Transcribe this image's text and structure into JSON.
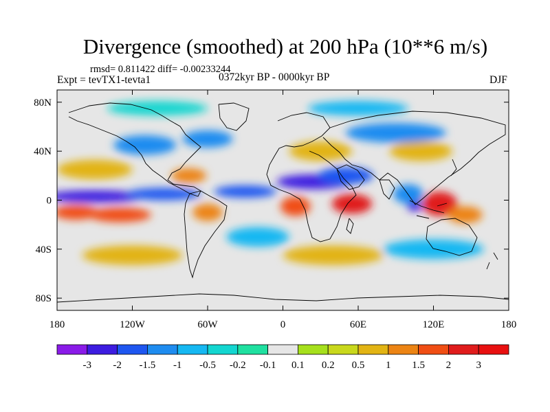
{
  "chart_data": {
    "type": "heatmap",
    "title": "Divergence (smoothed) at 200 hPa (10**6 m/s)",
    "stats": "rmsd= 0.811422 diff= -0.00233244",
    "experiment": "Expt = tevTX1-tevta1",
    "period": "0372kyr BP - 0000kyr BP",
    "season": "DJF",
    "xlim": [
      -180,
      180
    ],
    "ylim": [
      -90,
      90
    ],
    "x_ticks": [
      -180,
      -120,
      -60,
      0,
      60,
      120,
      180
    ],
    "x_tick_labels": [
      "180",
      "120W",
      "60W",
      "0",
      "60E",
      "120E",
      "180"
    ],
    "y_ticks": [
      80,
      40,
      0,
      -40,
      -80
    ],
    "y_tick_labels": [
      "80N",
      "40N",
      "0",
      "40S",
      "80S"
    ],
    "colorbar": {
      "labels": [
        "-3",
        "-2",
        "-1.5",
        "-1",
        "-0.5",
        "-0.2",
        "-0.1",
        "0.1",
        "0.2",
        "0.5",
        "1",
        "1.5",
        "2",
        "3"
      ],
      "colors": [
        "#8a1be8",
        "#3d1ce0",
        "#1e56f0",
        "#1e8cf0",
        "#16b8f2",
        "#13d6d0",
        "#1fe0a0",
        "#e6e6e6",
        "#a6e01c",
        "#c9d81c",
        "#e2b414",
        "#ec8414",
        "#f04e14",
        "#e01c1c",
        "#e81010"
      ]
    },
    "fields": [
      {
        "lon": -150,
        "lat": 3,
        "value": -2.4,
        "dlon": 40,
        "dlat": 5
      },
      {
        "lon": -95,
        "lat": 5,
        "value": -1.8,
        "dlon": 30,
        "dlat": 5
      },
      {
        "lon": -30,
        "lat": 7,
        "value": -1.6,
        "dlon": 25,
        "dlat": 5
      },
      {
        "lon": 25,
        "lat": 15,
        "value": -2.8,
        "dlon": 30,
        "dlat": 6
      },
      {
        "lon": 50,
        "lat": 20,
        "value": -1.8,
        "dlon": 22,
        "dlat": 7
      },
      {
        "lon": 100,
        "lat": 5,
        "value": -1.4,
        "dlon": 12,
        "dlat": 8
      },
      {
        "lon": 105,
        "lat": -5,
        "value": -2.2,
        "dlon": 6,
        "dlat": 4
      },
      {
        "lon": -165,
        "lat": -10,
        "value": 1.8,
        "dlon": 18,
        "dlat": 6
      },
      {
        "lon": -130,
        "lat": -12,
        "value": 1.6,
        "dlon": 25,
        "dlat": 6
      },
      {
        "lon": -60,
        "lat": -10,
        "value": 1.2,
        "dlon": 12,
        "dlat": 7
      },
      {
        "lon": 10,
        "lat": -5,
        "value": 1.6,
        "dlon": 12,
        "dlat": 8
      },
      {
        "lon": 55,
        "lat": -3,
        "value": 2.3,
        "dlon": 16,
        "dlat": 8
      },
      {
        "lon": 125,
        "lat": -3,
        "value": 3.0,
        "dlon": 14,
        "dlat": 10
      },
      {
        "lon": 145,
        "lat": -12,
        "value": 1.4,
        "dlon": 14,
        "dlat": 7
      },
      {
        "lon": -75,
        "lat": 20,
        "value": 1.5,
        "dlon": 14,
        "dlat": 6
      },
      {
        "lon": -150,
        "lat": 25,
        "value": 1.0,
        "dlon": 30,
        "dlat": 8
      },
      {
        "lon": 30,
        "lat": 40,
        "value": 1.0,
        "dlon": 25,
        "dlat": 8
      },
      {
        "lon": 110,
        "lat": 40,
        "value": 1.0,
        "dlon": 25,
        "dlat": 8
      },
      {
        "lon": -110,
        "lat": 45,
        "value": -1.2,
        "dlon": 25,
        "dlat": 8
      },
      {
        "lon": -60,
        "lat": 50,
        "value": -1.2,
        "dlon": 20,
        "dlat": 7
      },
      {
        "lon": 90,
        "lat": 55,
        "value": -1.0,
        "dlon": 40,
        "dlat": 8
      },
      {
        "lon": -120,
        "lat": -45,
        "value": 0.8,
        "dlon": 40,
        "dlat": 8
      },
      {
        "lon": 40,
        "lat": -45,
        "value": 0.8,
        "dlon": 40,
        "dlat": 8
      },
      {
        "lon": -20,
        "lat": -30,
        "value": -0.8,
        "dlon": 25,
        "dlat": 8
      },
      {
        "lon": 120,
        "lat": -40,
        "value": -0.7,
        "dlon": 40,
        "dlat": 8
      },
      {
        "lon": -100,
        "lat": 75,
        "value": -0.4,
        "dlon": 40,
        "dlat": 6
      },
      {
        "lon": 60,
        "lat": 75,
        "value": -0.5,
        "dlon": 40,
        "dlat": 6
      }
    ]
  }
}
